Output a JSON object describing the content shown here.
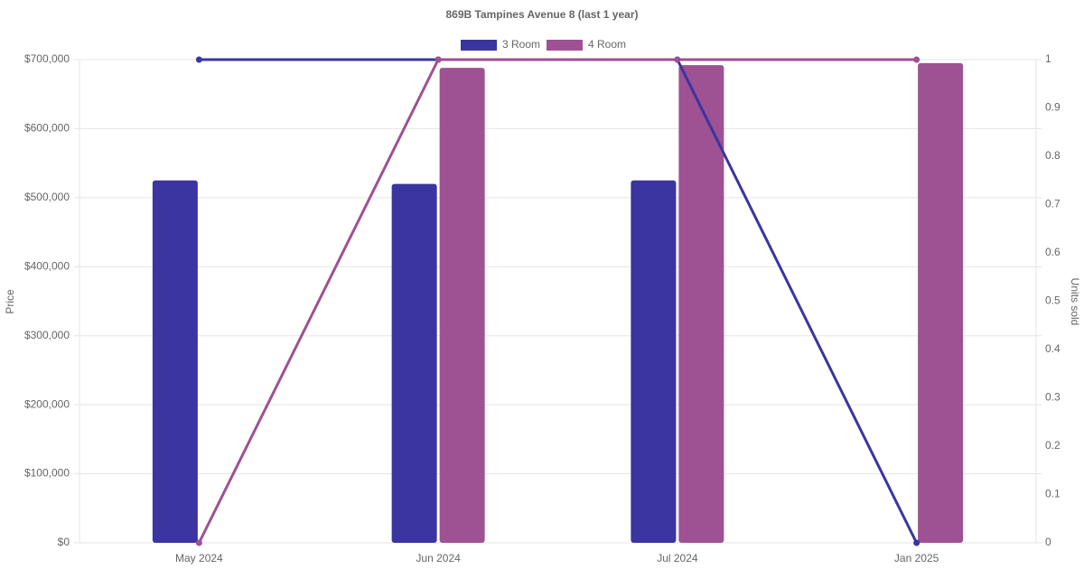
{
  "chart_data": {
    "type": "bar",
    "title": "869B Tampines Avenue 8 (last 1 year)",
    "y_label": "Price",
    "y2_label": "Units sold",
    "categories": [
      "May 2024",
      "Jun 2024",
      "Jul 2024",
      "Jan 2025"
    ],
    "series": [
      {
        "name": "3 Room",
        "color": "#3a35a0",
        "values": [
          525000,
          520000,
          525000,
          null
        ],
        "units": [
          1,
          1,
          1,
          0
        ]
      },
      {
        "name": "4 Room",
        "color": "#9e5193",
        "values": [
          null,
          688000,
          692000,
          695000
        ],
        "units": [
          0,
          1,
          1,
          1
        ]
      }
    ],
    "ylim": [
      0,
      700000
    ],
    "yticks": [
      {
        "value": 0,
        "label": "$0"
      },
      {
        "value": 100000,
        "label": "$100,000"
      },
      {
        "value": 200000,
        "label": "$200,000"
      },
      {
        "value": 300000,
        "label": "$300,000"
      },
      {
        "value": 400000,
        "label": "$400,000"
      },
      {
        "value": 500000,
        "label": "$500,000"
      },
      {
        "value": 600000,
        "label": "$600,000"
      },
      {
        "value": 700000,
        "label": "$700,000"
      }
    ],
    "y2lim": [
      0,
      1
    ],
    "y2ticks": [
      0,
      0.1,
      0.2,
      0.3,
      0.4,
      0.5,
      0.6,
      0.7,
      0.8,
      0.9,
      1
    ],
    "grid": true,
    "legend": "top"
  }
}
